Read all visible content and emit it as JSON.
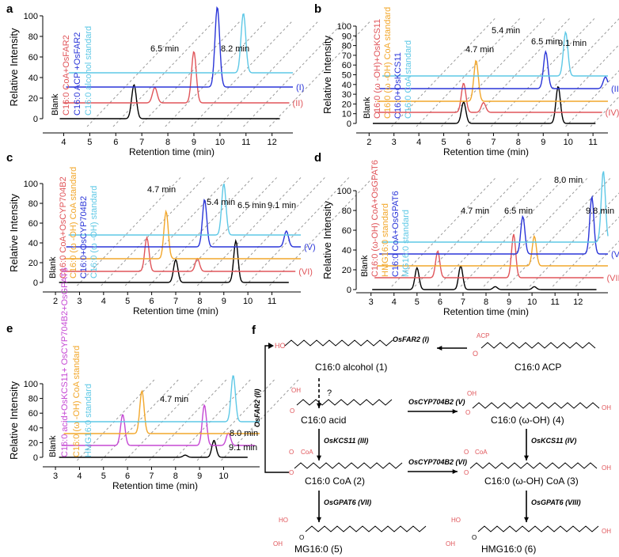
{
  "colors": {
    "black": "#000000",
    "red": "#e0555a",
    "blue": "#2a35d8",
    "cyan": "#5ec8e6",
    "orange": "#f2a72b",
    "magenta": "#c548d4",
    "grid_dash": "#9a9a9a",
    "annotation_arrow": "#b8b8b8"
  },
  "chart_data": [
    {
      "panel": "a",
      "type": "line",
      "x_range": [
        3.5,
        12.8
      ],
      "x_ticks": [
        "4",
        "5",
        "6",
        "7",
        "8",
        "9",
        "10",
        "11",
        "12"
      ],
      "y_ticks": [
        "0",
        "20",
        "40",
        "60",
        "80",
        "100"
      ],
      "xlabel": "Retention time (min)",
      "ylabel": "Relative Intensity",
      "series": [
        {
          "name": "Blank",
          "color": "black",
          "peaks": [
            [
              6.7,
              33
            ]
          ]
        },
        {
          "name": "C16:0 CoA+OsFAR2",
          "color": "red",
          "tag": "(II)",
          "peaks": [
            [
              7.5,
              15
            ],
            [
              9.0,
              50
            ]
          ]
        },
        {
          "name": "C16:0 ACP +OsFAR2",
          "color": "blue",
          "tag": "(I)",
          "peaks": [
            [
              9.9,
              78
            ]
          ]
        },
        {
          "name": "C16:0 alcohol standard",
          "color": "cyan",
          "peaks": [
            [
              10.9,
              58
            ]
          ]
        }
      ],
      "annotations": [
        "6.5 min",
        "8.2 min"
      ]
    },
    {
      "panel": "b",
      "type": "line",
      "x_range": [
        1.8,
        11.6
      ],
      "x_ticks": [
        "2",
        "3",
        "4",
        "5",
        "6",
        "7",
        "8",
        "9",
        "10",
        "11"
      ],
      "y_ticks": [
        "0",
        "10",
        "20",
        "30",
        "40",
        "50",
        "60",
        "70",
        "80",
        "90",
        "100"
      ],
      "xlabel": "Retention time (min)",
      "ylabel": "Relative Intensity",
      "series": [
        {
          "name": "Blank",
          "color": "black",
          "peaks": [
            [
              5.8,
              22
            ],
            [
              9.6,
              38
            ]
          ]
        },
        {
          "name": "C16:0 (ω -OH)+OsKCS11",
          "color": "red",
          "tag": "(IV)",
          "peaks": [
            [
              5.8,
              30
            ],
            [
              6.6,
              10
            ]
          ]
        },
        {
          "name": "C16:0 (ω -OH) CoA standard",
          "color": "orange",
          "peaks": [
            [
              6.3,
              42
            ]
          ]
        },
        {
          "name": "C16:0+OsKCS11",
          "color": "blue",
          "tag": "(III)",
          "peaks": [
            [
              9.1,
              38
            ],
            [
              11.5,
              12
            ]
          ]
        },
        {
          "name": "C16:0 CoA standard",
          "color": "cyan",
          "peaks": [
            [
              9.9,
              45
            ]
          ]
        }
      ],
      "annotations": [
        "4.7 min",
        "5.4 min",
        "6.5 min",
        "9.1 min"
      ]
    },
    {
      "panel": "c",
      "type": "line",
      "x_range": [
        1.8,
        12.2
      ],
      "x_ticks": [
        "2",
        "3",
        "4",
        "5",
        "6",
        "7",
        "8",
        "9",
        "10",
        "11"
      ],
      "y_ticks": [
        "0",
        "20",
        "40",
        "60",
        "80",
        "100"
      ],
      "xlabel": "Retention time (min)",
      "ylabel": "Relative Intensity",
      "series": [
        {
          "name": "Blank",
          "color": "black",
          "peaks": [
            [
              7.0,
              23
            ],
            [
              9.5,
              42
            ]
          ]
        },
        {
          "name": "C16:0 CoA+OsCYP704B2",
          "color": "red",
          "tag": "(VI)",
          "peaks": [
            [
              5.8,
              34
            ],
            [
              7.9,
              13
            ]
          ]
        },
        {
          "name": "C16:0 (ω -OH) CoA standard",
          "color": "orange",
          "peaks": [
            [
              6.6,
              48
            ]
          ]
        },
        {
          "name": "C16:0+OsCYP704B2",
          "color": "blue",
          "tag": "(V)",
          "peaks": [
            [
              8.2,
              48
            ],
            [
              11.6,
              16
            ]
          ]
        },
        {
          "name": "C16:0 (ω -OH) standard",
          "color": "cyan",
          "peaks": [
            [
              9.0,
              52
            ]
          ]
        }
      ],
      "annotations": [
        "4.7 min",
        "5.4 min",
        "6.5 min",
        "9.1 min"
      ]
    },
    {
      "panel": "d",
      "type": "line",
      "x_range": [
        2.7,
        13.3
      ],
      "x_ticks": [
        "3",
        "4",
        "5",
        "6",
        "7",
        "8",
        "9",
        "10",
        "11",
        "12"
      ],
      "y_ticks": [
        "0",
        "20",
        "40",
        "60",
        "80",
        "100"
      ],
      "xlabel": "Retention time (min)",
      "ylabel": "Relative Intensity",
      "series": [
        {
          "name": "Blank",
          "color": "black",
          "peaks": [
            [
              5.0,
              22
            ],
            [
              6.9,
              24
            ],
            [
              8.4,
              3
            ],
            [
              10.1,
              3
            ]
          ]
        },
        {
          "name": "C16:0 (ω-OH) CoA+OsGPAT6",
          "color": "red",
          "tag": "(VIII)",
          "peaks": [
            [
              5.9,
              27
            ],
            [
              9.2,
              44
            ]
          ]
        },
        {
          "name": "HMG16:0 standard",
          "color": "orange",
          "peaks": [
            [
              10.1,
              30
            ]
          ]
        },
        {
          "name": "C16:0 CoA+OsGPAT6",
          "color": "blue",
          "tag": "(VII)",
          "peaks": [
            [
              9.6,
              38
            ],
            [
              12.6,
              58
            ]
          ]
        },
        {
          "name": "MG16:0 standard",
          "color": "cyan",
          "peaks": [
            [
              13.1,
              72
            ]
          ]
        }
      ],
      "annotations": [
        "4.7 min",
        "6.5 min",
        "8.0 min",
        "9.8 min"
      ]
    },
    {
      "panel": "e",
      "type": "line",
      "x_range": [
        2.8,
        11.5
      ],
      "x_ticks": [
        "3",
        "4",
        "5",
        "6",
        "7",
        "8",
        "9",
        "10"
      ],
      "y_ticks": [
        "0",
        "20",
        "40",
        "60",
        "80",
        "100"
      ],
      "xlabel": "Retention time (min)",
      "ylabel": "Relative Intensity",
      "series": [
        {
          "name": "Blank",
          "color": "black",
          "peaks": [
            [
              8.4,
              3
            ],
            [
              9.6,
              23
            ]
          ]
        },
        {
          "name": "C16:0 acid+OsKCS11+ OsCYP704B2+OsGPAT6",
          "color": "magenta",
          "peaks": [
            [
              5.8,
              42
            ],
            [
              9.2,
              55
            ],
            [
              10.2,
              17
            ]
          ]
        },
        {
          "name": "C16:0 (ω -OH) CoA standard",
          "color": "orange",
          "peaks": [
            [
              6.6,
              58
            ]
          ]
        },
        {
          "name": "HMG16:0 standard",
          "color": "cyan",
          "peaks": [
            [
              10.4,
              63
            ]
          ]
        }
      ],
      "annotations": [
        "4.7 min",
        "8.0 min",
        "9.1 min"
      ]
    }
  ],
  "panel_labels": {
    "a": "a",
    "b": "b",
    "c": "c",
    "d": "d",
    "e": "e",
    "f": "f"
  },
  "pathway": {
    "compounds": {
      "alcohol": "C16:0 alcohol (1)",
      "acp": "C16:0 ACP",
      "acid": "C16:0 acid",
      "omega_oh": "C16:0 (ω-OH) (4)",
      "coa": "C16:0 CoA (2)",
      "omega_coa": "C16:0 (ω-OH) CoA (3)",
      "mg": "MG16:0 (5)",
      "hmg": "HMG16:0 (6)"
    },
    "enzymes": {
      "far2_i": "OsFAR2 (I)",
      "far2_ii": "OsFAR2 (II)",
      "cyp_v": "OsCYP704B2 (V)",
      "kcs_iii": "OsKCS11 (III)",
      "kcs_iv": "OsKCS11 (IV)",
      "cyp_vi": "OsCYP704B2 (VI)",
      "gpat_vii": "OsGPAT6 (VII)",
      "gpat_viii": "OsGPAT6 (VIII)"
    },
    "question_mark": "?",
    "atoms": {
      "ho": "HO",
      "oh": "OH",
      "o": "O",
      "acp": "ACP",
      "coa": "CoA"
    }
  }
}
